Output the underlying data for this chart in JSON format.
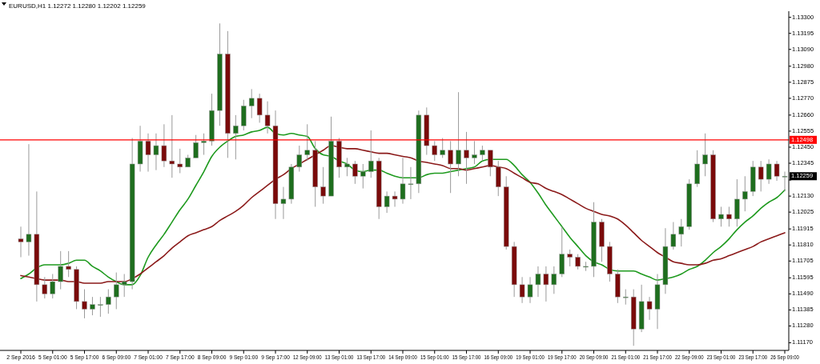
{
  "chart_data": {
    "type": "candlestick",
    "title": "EURUSD,H1  1.12272 1.12280 1.12202 1.12259",
    "categories": [
      "2 Sep 2016",
      null,
      null,
      null,
      "5 Sep 01:00",
      null,
      null,
      null,
      "5 Sep 17:00",
      null,
      null,
      null,
      "6 Sep 09:00",
      null,
      null,
      null,
      "7 Sep 01:00",
      null,
      null,
      null,
      "7 Sep 17:00",
      null,
      null,
      null,
      "8 Sep 09:00",
      null,
      null,
      null,
      "9 Sep 01:00",
      null,
      null,
      null,
      "9 Sep 17:00",
      null,
      null,
      null,
      "12 Sep 09:00",
      null,
      null,
      null,
      "13 Sep 01:00",
      null,
      null,
      null,
      "13 Sep 17:00",
      null,
      null,
      null,
      "14 Sep 09:00",
      null,
      null,
      null,
      "15 Sep 01:00",
      null,
      null,
      null,
      "15 Sep 17:00",
      null,
      null,
      null,
      "16 Sep 09:00",
      null,
      null,
      null,
      "19 Sep 01:00",
      null,
      null,
      null,
      "19 Sep 17:00",
      null,
      null,
      null,
      "20 Sep 09:00",
      null,
      null,
      null,
      "21 Sep 01:00",
      null,
      null,
      null,
      "21 Sep 17:00",
      null,
      null,
      null,
      "22 Sep 09:00",
      null,
      null,
      null,
      "23 Sep 01:00",
      null,
      null,
      null,
      "23 Sep 17:00",
      null,
      null,
      null,
      "26 Sep 09:00"
    ],
    "ohlc": [
      [
        1.1185,
        1.1193,
        1.1173,
        1.1183
      ],
      [
        1.1183,
        1.1247,
        1.1174,
        1.1188
      ],
      [
        1.1188,
        1.1216,
        1.1144,
        1.1155
      ],
      [
        1.1155,
        1.116,
        1.1146,
        1.1149
      ],
      [
        1.1149,
        1.1162,
        1.1146,
        1.1157
      ],
      [
        1.1157,
        1.1177,
        1.1152,
        1.1167
      ],
      [
        1.1167,
        1.1177,
        1.116,
        1.1165
      ],
      [
        1.1165,
        1.1167,
        1.1139,
        1.1144
      ],
      [
        1.1144,
        1.1152,
        1.1133,
        1.1139
      ],
      [
        1.1139,
        1.1147,
        1.1135,
        1.1142
      ],
      [
        1.1142,
        1.1147,
        1.1134,
        1.1142
      ],
      [
        1.1142,
        1.1152,
        1.1136,
        1.1147
      ],
      [
        1.1147,
        1.1163,
        1.1139,
        1.1155
      ],
      [
        1.1155,
        1.1162,
        1.1147,
        1.1157
      ],
      [
        1.1157,
        1.1251,
        1.1152,
        1.1234
      ],
      [
        1.1234,
        1.1259,
        1.1229,
        1.1249
      ],
      [
        1.1249,
        1.1254,
        1.1229,
        1.124
      ],
      [
        1.124,
        1.1254,
        1.123,
        1.1246
      ],
      [
        1.1246,
        1.126,
        1.1232,
        1.1236
      ],
      [
        1.1236,
        1.1266,
        1.1225,
        1.1234
      ],
      [
        1.1234,
        1.1244,
        1.1228,
        1.1232
      ],
      [
        1.1232,
        1.124,
        1.1232,
        1.1238
      ],
      [
        1.1238,
        1.1253,
        1.1238,
        1.1248
      ],
      [
        1.1248,
        1.1254,
        1.124,
        1.1249
      ],
      [
        1.1249,
        1.128,
        1.1246,
        1.1269
      ],
      [
        1.1269,
        1.1326,
        1.1259,
        1.1306
      ],
      [
        1.1306,
        1.1321,
        1.1238,
        1.1254
      ],
      [
        1.1254,
        1.1266,
        1.1237,
        1.1259
      ],
      [
        1.1259,
        1.1276,
        1.1256,
        1.1272
      ],
      [
        1.1272,
        1.1283,
        1.1264,
        1.1277
      ],
      [
        1.1277,
        1.128,
        1.1261,
        1.1266
      ],
      [
        1.1266,
        1.1275,
        1.1254,
        1.1259
      ],
      [
        1.1259,
        1.1269,
        1.1198,
        1.1208
      ],
      [
        1.1208,
        1.1219,
        1.1198,
        1.1211
      ],
      [
        1.1211,
        1.1234,
        1.1208,
        1.1232
      ],
      [
        1.1232,
        1.1246,
        1.1229,
        1.124
      ],
      [
        1.124,
        1.126,
        1.1236,
        1.1243
      ],
      [
        1.1243,
        1.1249,
        1.1206,
        1.1219
      ],
      [
        1.1219,
        1.1232,
        1.1208,
        1.1213
      ],
      [
        1.1213,
        1.1265,
        1.1213,
        1.1249
      ],
      [
        1.1249,
        1.1251,
        1.1225,
        1.1232
      ],
      [
        1.1232,
        1.1238,
        1.1226,
        1.1234
      ],
      [
        1.1234,
        1.1236,
        1.1221,
        1.1226
      ],
      [
        1.1226,
        1.1234,
        1.1218,
        1.1229
      ],
      [
        1.1229,
        1.1256,
        1.1225,
        1.1236
      ],
      [
        1.1236,
        1.1238,
        1.1198,
        1.1206
      ],
      [
        1.1206,
        1.1216,
        1.1202,
        1.1213
      ],
      [
        1.1213,
        1.1216,
        1.1206,
        1.1211
      ],
      [
        1.1211,
        1.1238,
        1.1208,
        1.1221
      ],
      [
        1.1221,
        1.1232,
        1.1211,
        1.1221
      ],
      [
        1.1221,
        1.1269,
        1.1215,
        1.1266
      ],
      [
        1.1266,
        1.1271,
        1.124,
        1.1246
      ],
      [
        1.1246,
        1.1249,
        1.1236,
        1.124
      ],
      [
        1.124,
        1.1251,
        1.1238,
        1.1243
      ],
      [
        1.1243,
        1.1249,
        1.1215,
        1.1234
      ],
      [
        1.1234,
        1.1281,
        1.1226,
        1.1243
      ],
      [
        1.1243,
        1.1255,
        1.1221,
        1.1238
      ],
      [
        1.1238,
        1.1249,
        1.1234,
        1.124
      ],
      [
        1.124,
        1.1246,
        1.1236,
        1.1243
      ],
      [
        1.1243,
        1.1243,
        1.1226,
        1.1232
      ],
      [
        1.1232,
        1.1236,
        1.1213,
        1.1219
      ],
      [
        1.1219,
        1.1226,
        1.1178,
        1.118
      ],
      [
        1.118,
        1.1183,
        1.1147,
        1.1155
      ],
      [
        1.1155,
        1.116,
        1.1143,
        1.1147
      ],
      [
        1.1147,
        1.116,
        1.1143,
        1.1155
      ],
      [
        1.1155,
        1.1167,
        1.1147,
        1.1162
      ],
      [
        1.1162,
        1.1167,
        1.1144,
        1.1155
      ],
      [
        1.1155,
        1.1167,
        1.1149,
        1.1162
      ],
      [
        1.1162,
        1.1193,
        1.116,
        1.1175
      ],
      [
        1.1175,
        1.1178,
        1.1167,
        1.1173
      ],
      [
        1.1173,
        1.1175,
        1.1165,
        1.1167
      ],
      [
        1.1167,
        1.117,
        1.1164,
        1.1167
      ],
      [
        1.1167,
        1.1209,
        1.116,
        1.1196
      ],
      [
        1.1196,
        1.1198,
        1.117,
        1.118
      ],
      [
        1.118,
        1.1183,
        1.1157,
        1.1162
      ],
      [
        1.1162,
        1.1165,
        1.1143,
        1.1147
      ],
      [
        1.1147,
        1.1152,
        1.1142,
        1.1147
      ],
      [
        1.1147,
        1.1152,
        1.1115,
        1.1126
      ],
      [
        1.1126,
        1.1155,
        1.1124,
        1.1144
      ],
      [
        1.1144,
        1.1147,
        1.1132,
        1.1139
      ],
      [
        1.1139,
        1.1162,
        1.1126,
        1.1155
      ],
      [
        1.1155,
        1.1192,
        1.1149,
        1.118
      ],
      [
        1.118,
        1.1196,
        1.1178,
        1.1188
      ],
      [
        1.1188,
        1.1198,
        1.118,
        1.1193
      ],
      [
        1.1193,
        1.1224,
        1.1191,
        1.1221
      ],
      [
        1.1221,
        1.1243,
        1.1219,
        1.1234
      ],
      [
        1.1234,
        1.1254,
        1.1226,
        1.124
      ],
      [
        1.124,
        1.1243,
        1.1196,
        1.1198
      ],
      [
        1.1198,
        1.1206,
        1.1193,
        1.1201
      ],
      [
        1.1201,
        1.1206,
        1.1193,
        1.1198
      ],
      [
        1.1198,
        1.1224,
        1.1193,
        1.1211
      ],
      [
        1.1211,
        1.1226,
        1.1203,
        1.1216
      ],
      [
        1.1216,
        1.1236,
        1.1213,
        1.1232
      ],
      [
        1.1232,
        1.1236,
        1.1216,
        1.1224
      ],
      [
        1.1224,
        1.1237,
        1.1221,
        1.1234
      ],
      [
        1.1234,
        1.1236,
        1.1223,
        1.1226
      ],
      [
        1.1226,
        1.1229,
        1.1216,
        1.1226
      ]
    ],
    "series": [
      {
        "type": "line",
        "color": "#1e9a1e",
        "values": [
          1.1159,
          1.1162,
          1.1166,
          1.1168,
          1.1168,
          1.1168,
          1.1169,
          1.1171,
          1.1171,
          1.1167,
          1.1164,
          1.116,
          1.1157,
          1.1155,
          1.1155,
          1.1161,
          1.1173,
          1.1181,
          1.1188,
          1.1196,
          1.1204,
          1.1211,
          1.122,
          1.1229,
          1.1239,
          1.1245,
          1.1249,
          1.1252,
          1.1253,
          1.1255,
          1.1256,
          1.1258,
          1.1254,
          1.1253,
          1.1254,
          1.1253,
          1.1252,
          1.1244,
          1.124,
          1.1239,
          1.1236,
          1.1234,
          1.123,
          1.1229,
          1.123,
          1.123,
          1.1228,
          1.1226,
          1.1225,
          1.1225,
          1.1225,
          1.1227,
          1.1228,
          1.1228,
          1.1229,
          1.123,
          1.1231,
          1.1232,
          1.1236,
          1.1237,
          1.1237,
          1.1237,
          1.1233,
          1.1227,
          1.1222,
          1.1215,
          1.1207,
          1.12,
          1.1193,
          1.1186,
          1.118,
          1.1174,
          1.117,
          1.1168,
          1.1165,
          1.1164,
          1.1164,
          1.1164,
          1.1162,
          1.116,
          1.1158,
          1.1159,
          1.116,
          1.1162,
          1.1165,
          1.1167,
          1.1171,
          1.1176,
          1.118,
          1.1185,
          1.1191,
          1.1196,
          1.12,
          1.1205,
          1.1209,
          1.1212,
          1.1217
        ]
      },
      {
        "type": "line",
        "color": "#8b1a1a",
        "values": [
          1.1161,
          1.116,
          1.1159,
          1.1158,
          1.1158,
          1.1158,
          1.1157,
          1.1157,
          1.1156,
          1.1156,
          1.1156,
          1.1157,
          1.1157,
          1.1157,
          1.1159,
          1.1162,
          1.1166,
          1.117,
          1.1174,
          1.1179,
          1.1183,
          1.1187,
          1.1189,
          1.1191,
          1.1193,
          1.1197,
          1.12,
          1.1203,
          1.1207,
          1.1212,
          1.1216,
          1.122,
          1.1224,
          1.1227,
          1.1231,
          1.1234,
          1.1237,
          1.124,
          1.1243,
          1.1246,
          1.1245,
          1.1244,
          1.1244,
          1.1243,
          1.1242,
          1.1241,
          1.1241,
          1.124,
          1.1239,
          1.1238,
          1.1236,
          1.1235,
          1.1234,
          1.1233,
          1.1231,
          1.1231,
          1.123,
          1.1231,
          1.1232,
          1.1233,
          1.1232,
          1.1231,
          1.1228,
          1.1225,
          1.1222,
          1.1221,
          1.1218,
          1.1216,
          1.1214,
          1.1211,
          1.1208,
          1.1205,
          1.1203,
          1.1201,
          1.12,
          1.1198,
          1.1194,
          1.1189,
          1.1184,
          1.118,
          1.1176,
          1.1173,
          1.117,
          1.1169,
          1.1168,
          1.1168,
          1.1169,
          1.1171,
          1.1172,
          1.1174,
          1.1176,
          1.1178,
          1.118,
          1.1183,
          1.1185,
          1.1187,
          1.1189
        ]
      }
    ],
    "ylim": [
      1.1112,
      1.1334
    ],
    "yticks": [
      {
        "value": 1.133,
        "label": "1.13300"
      },
      1.13195,
      {
        "value": 1.1309,
        "label": "1.13090"
      },
      {
        "value": 1.1298,
        "label": "1.12980"
      },
      1.12875,
      {
        "value": 1.1277,
        "label": "1.12770"
      },
      {
        "value": 1.1266,
        "label": "1.12660"
      },
      1.12555,
      {
        "value": 1.1245,
        "label": "1.12450"
      },
      1.12345,
      {
        "value": 1.12235,
        "label": null
      },
      {
        "value": 1.1213,
        "label": "1.12130"
      },
      1.12025,
      1.11915,
      {
        "value": 1.1181,
        "label": "1.11810"
      },
      1.11705,
      1.11595,
      {
        "value": 1.1149,
        "label": "1.11490"
      },
      1.11385,
      {
        "value": 1.1128,
        "label": "1.11280"
      },
      {
        "value": 1.1117,
        "label": "1.11170"
      }
    ],
    "ref_lines": [
      {
        "axis": "y",
        "value": 1.12498,
        "label": "1.12498",
        "color": "#ff0000"
      }
    ],
    "annotations": [
      "1.12259"
    ],
    "grid": false
  }
}
